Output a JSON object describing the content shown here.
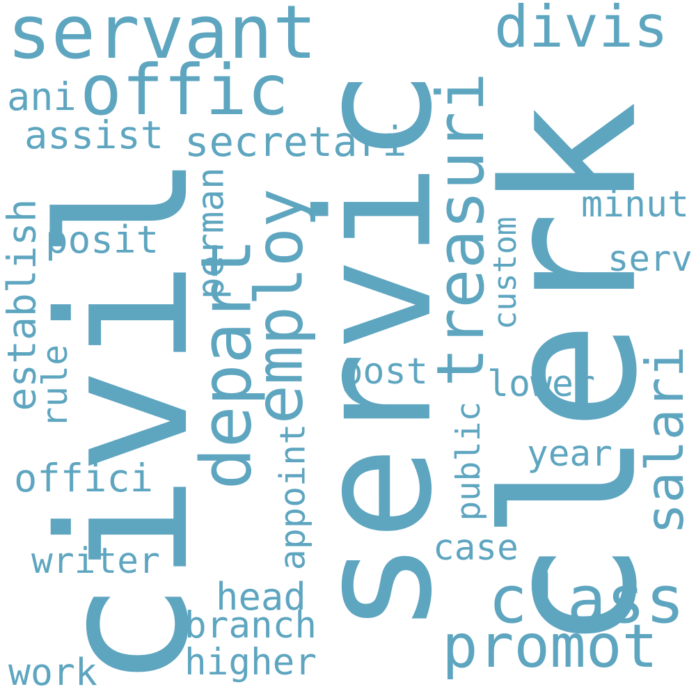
{
  "word_color": "#5ea5c0",
  "background": "#ffffff",
  "words": [
    {
      "text": "servic",
      "vertical": true
    },
    {
      "text": "civil",
      "vertical": true
    },
    {
      "text": "clerk",
      "vertical": true
    },
    {
      "text": "servant",
      "vertical": false
    },
    {
      "text": "offic",
      "vertical": false
    },
    {
      "text": "divis",
      "vertical": false
    },
    {
      "text": "depart",
      "vertical": true
    },
    {
      "text": "employ",
      "vertical": true
    },
    {
      "text": "treasuri",
      "vertical": true
    },
    {
      "text": "secretari",
      "vertical": false
    },
    {
      "text": "class",
      "vertical": false
    },
    {
      "text": "promot",
      "vertical": false
    },
    {
      "text": "salari",
      "vertical": true
    },
    {
      "text": "establish",
      "vertical": true
    },
    {
      "text": "ani",
      "vertical": false
    },
    {
      "text": "assist",
      "vertical": false
    },
    {
      "text": "posit",
      "vertical": false
    },
    {
      "text": "rule",
      "vertical": true
    },
    {
      "text": "offici",
      "vertical": false
    },
    {
      "text": "writer",
      "vertical": false
    },
    {
      "text": "work",
      "vertical": false
    },
    {
      "text": "perman",
      "vertical": true
    },
    {
      "text": "appoint",
      "vertical": true
    },
    {
      "text": "head",
      "vertical": false
    },
    {
      "text": "branch",
      "vertical": false
    },
    {
      "text": "higher",
      "vertical": false
    },
    {
      "text": "post",
      "vertical": false
    },
    {
      "text": "custom",
      "vertical": true
    },
    {
      "text": "public",
      "vertical": true
    },
    {
      "text": "lower",
      "vertical": false
    },
    {
      "text": "year",
      "vertical": false
    },
    {
      "text": "case",
      "vertical": false
    },
    {
      "text": "minut",
      "vertical": false
    },
    {
      "text": "serv",
      "vertical": false
    }
  ]
}
